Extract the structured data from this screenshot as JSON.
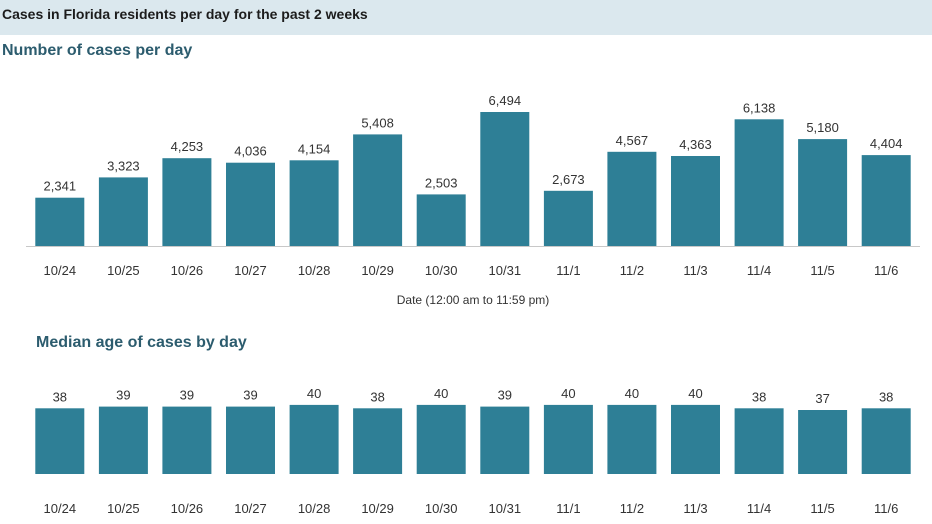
{
  "header": {
    "title": "Cases in Florida residents per day for the past 2 weeks"
  },
  "colors": {
    "bar": "#2e7f96",
    "header_band": "#dbe8ee",
    "section_title": "#2c5c6e",
    "text": "#333333"
  },
  "chart_data": [
    {
      "type": "bar",
      "title": "Number of cases per day",
      "xlabel": "Date (12:00 am to 11:59 pm)",
      "ylabel": "",
      "categories": [
        "10/24",
        "10/25",
        "10/26",
        "10/27",
        "10/28",
        "10/29",
        "10/30",
        "10/31",
        "11/1",
        "11/2",
        "11/3",
        "11/4",
        "11/5",
        "11/6"
      ],
      "values": [
        2341,
        3323,
        4253,
        4036,
        4154,
        5408,
        2503,
        6494,
        2673,
        4567,
        4363,
        6138,
        5180,
        4404
      ],
      "value_labels": [
        "2,341",
        "3,323",
        "4,253",
        "4,036",
        "4,154",
        "5,408",
        "2,503",
        "6,494",
        "2,673",
        "4,567",
        "4,363",
        "6,138",
        "5,180",
        "4,404"
      ],
      "ylim": [
        0,
        6494
      ],
      "grid": false,
      "legend": "none"
    },
    {
      "type": "bar",
      "title": "Median age of cases by day",
      "xlabel": "",
      "ylabel": "",
      "categories": [
        "10/24",
        "10/25",
        "10/26",
        "10/27",
        "10/28",
        "10/29",
        "10/30",
        "10/31",
        "11/1",
        "11/2",
        "11/3",
        "11/4",
        "11/5",
        "11/6"
      ],
      "values": [
        38,
        39,
        39,
        39,
        40,
        38,
        40,
        39,
        40,
        40,
        40,
        38,
        37,
        38
      ],
      "value_labels": [
        "38",
        "39",
        "39",
        "39",
        "40",
        "38",
        "40",
        "39",
        "40",
        "40",
        "40",
        "38",
        "37",
        "38"
      ],
      "ylim": [
        0,
        40
      ],
      "grid": false,
      "legend": "none"
    }
  ]
}
